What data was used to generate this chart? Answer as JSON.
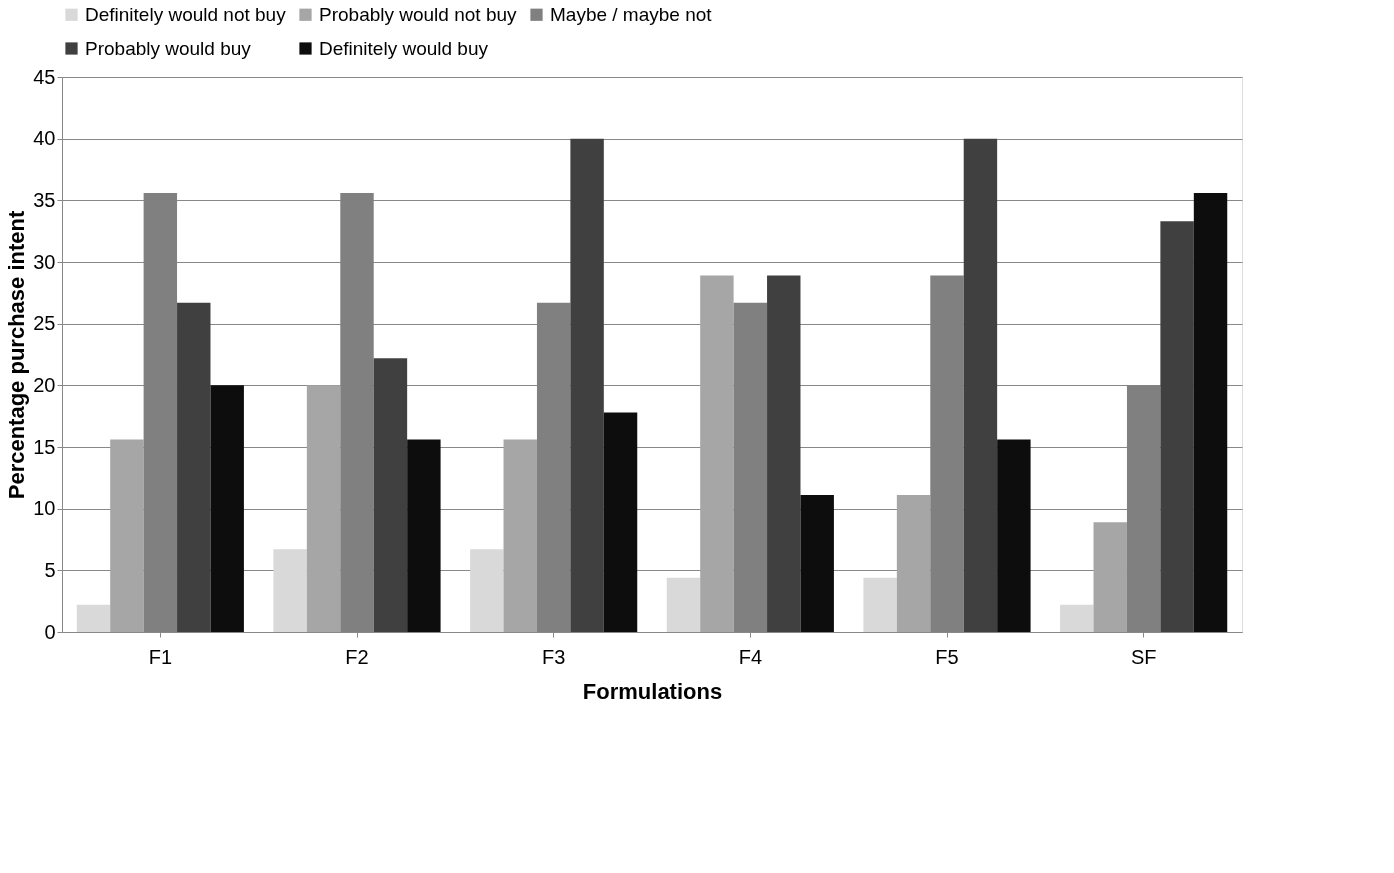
{
  "chart_data": {
    "type": "bar",
    "xlabel": "Formulations",
    "ylabel": "Percentage purchase intent",
    "categories": [
      "F1",
      "F2",
      "F3",
      "F4",
      "F5",
      "SF"
    ],
    "series": [
      {
        "name": "Definitely would not buy",
        "color": "#d9d9d9",
        "values": [
          2.2,
          6.7,
          6.7,
          4.4,
          4.4,
          2.2
        ]
      },
      {
        "name": "Probably would not buy",
        "color": "#a6a6a6",
        "values": [
          15.6,
          20,
          15.6,
          28.9,
          11.1,
          8.9
        ]
      },
      {
        "name": "Maybe / maybe not",
        "color": "#808080",
        "values": [
          35.6,
          35.6,
          26.7,
          26.7,
          28.9,
          20
        ]
      },
      {
        "name": "Probably would buy",
        "color": "#404040",
        "values": [
          26.7,
          22.2,
          40,
          28.9,
          40,
          33.3
        ]
      },
      {
        "name": "Definitely would buy",
        "color": "#0d0d0d",
        "values": [
          20,
          15.6,
          17.8,
          11.1,
          15.6,
          35.6
        ]
      }
    ],
    "ylim": [
      0,
      45
    ],
    "yticks": [
      0,
      5,
      10,
      15,
      20,
      25,
      30,
      35,
      40,
      45
    ],
    "grid": "y",
    "legend": "top"
  }
}
